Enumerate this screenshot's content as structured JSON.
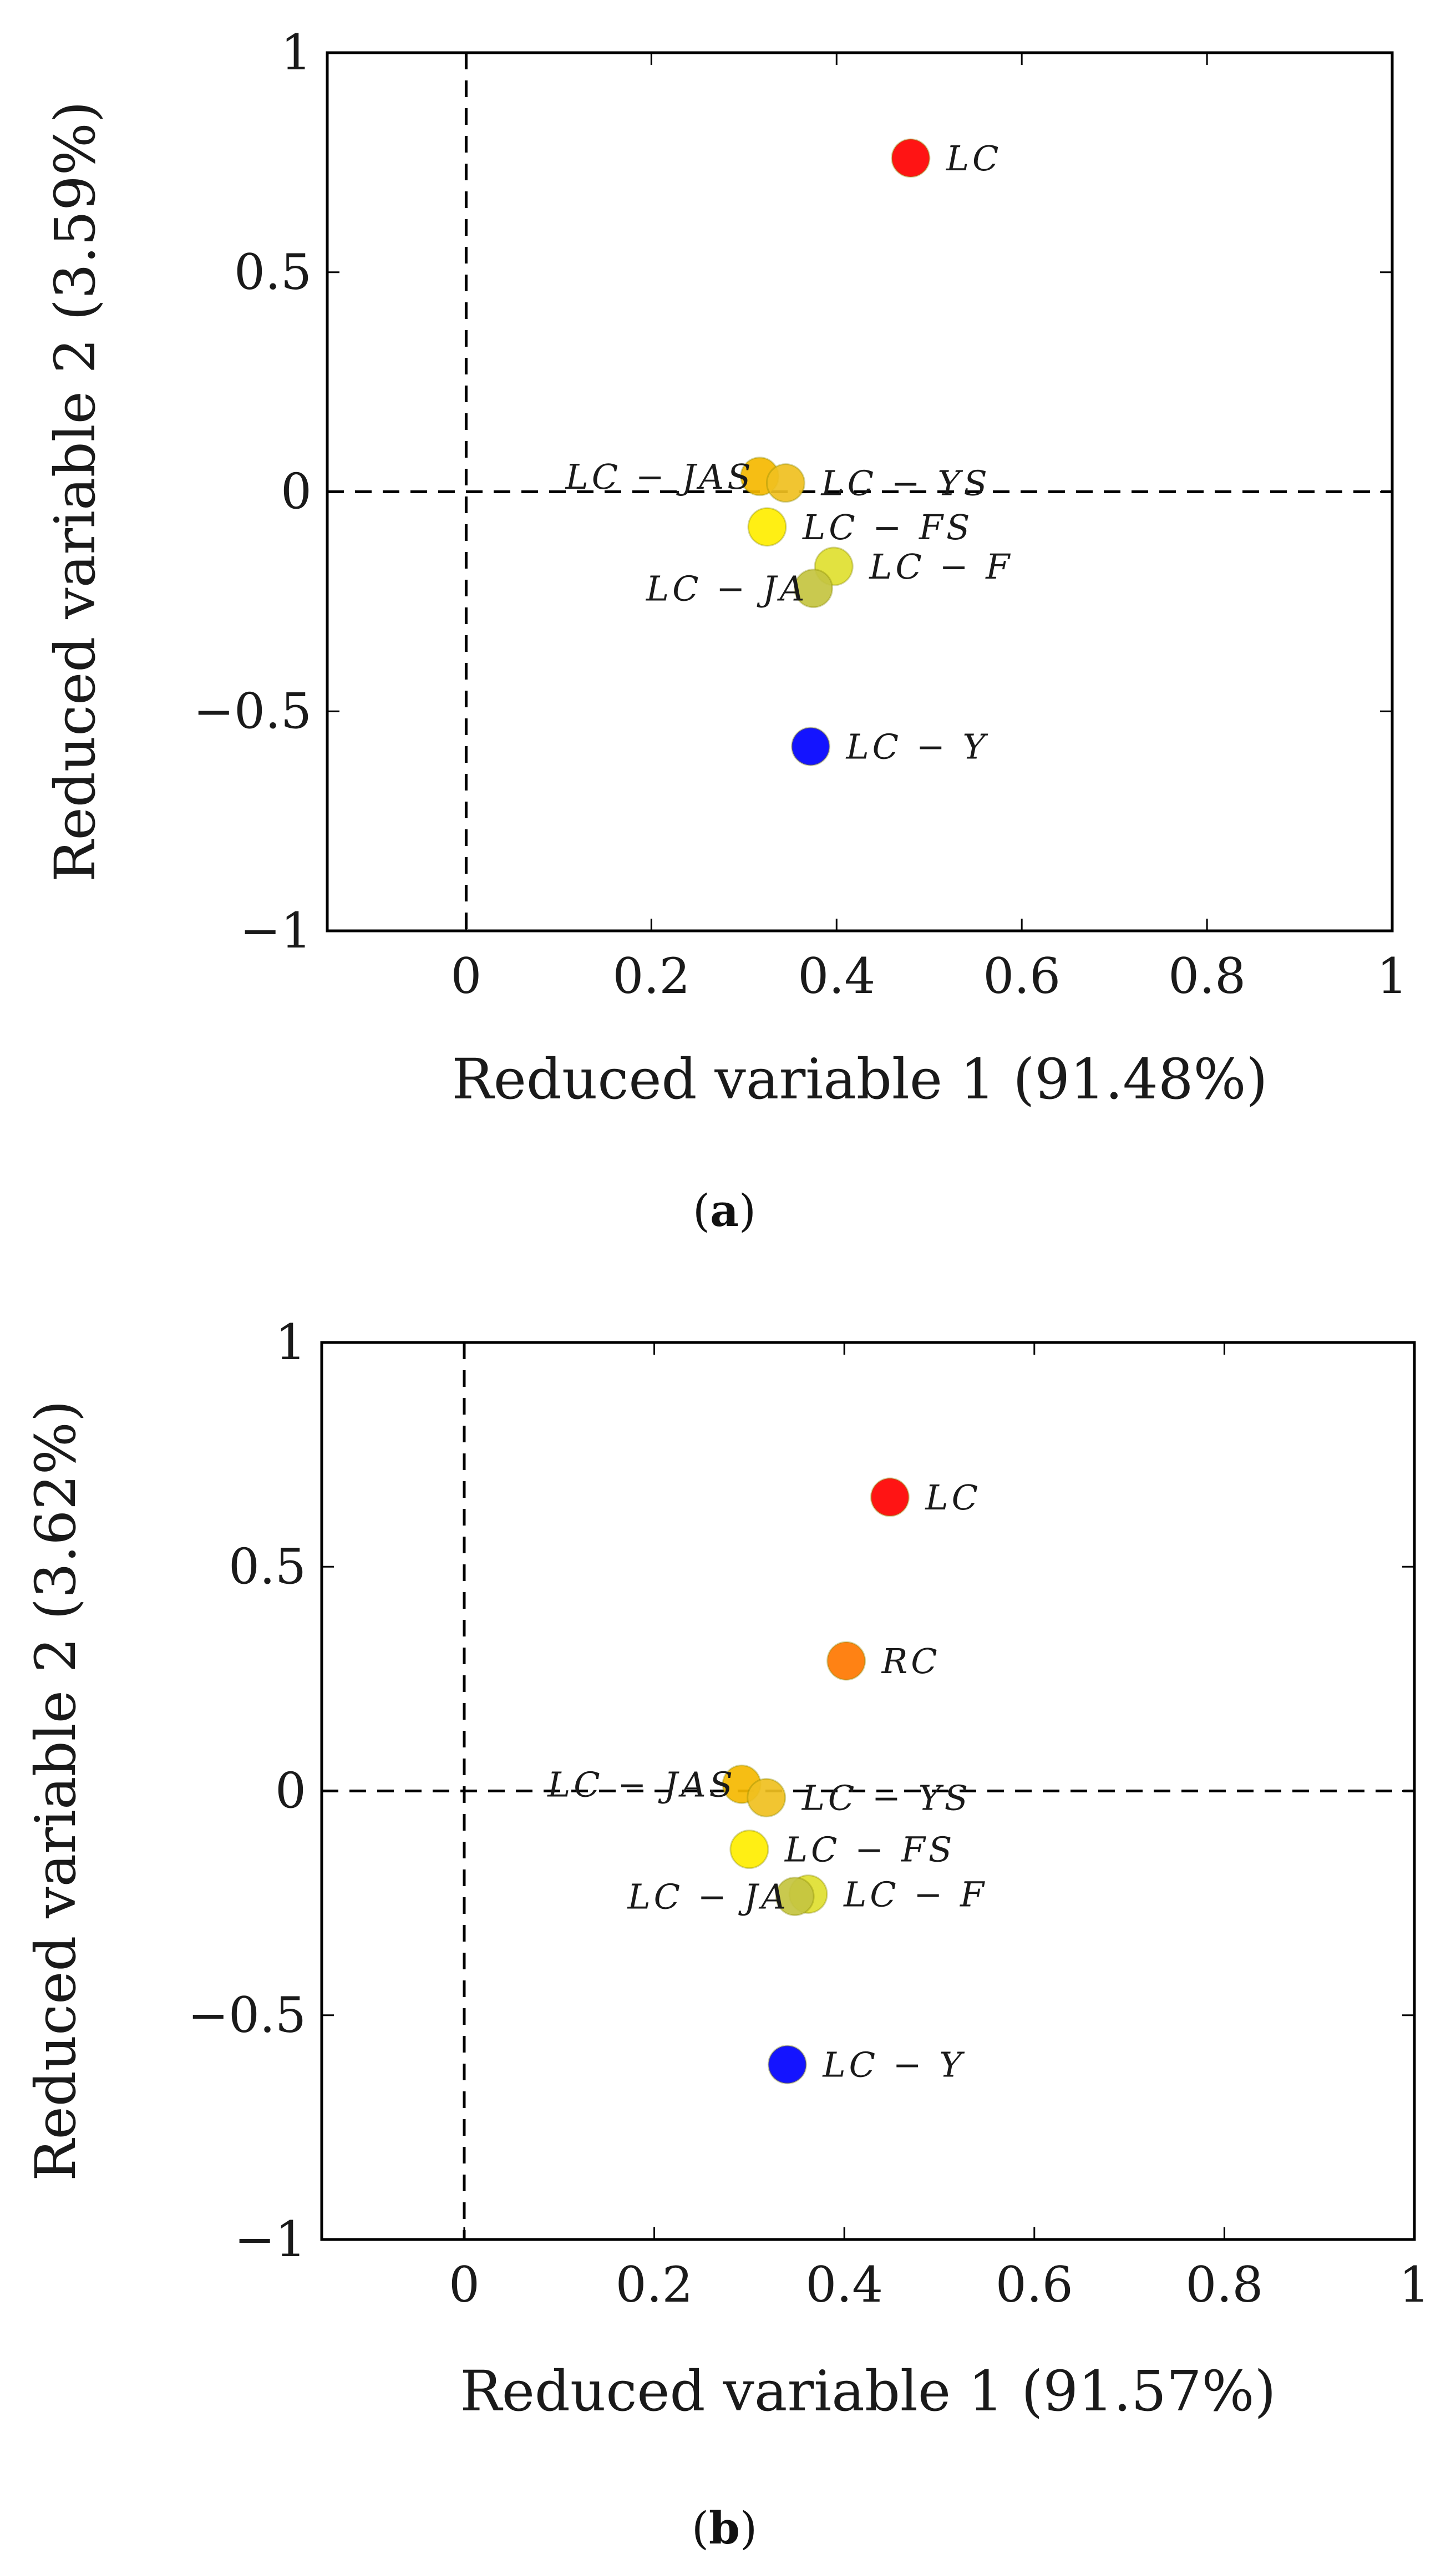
{
  "chart_data": [
    {
      "type": "scatter",
      "panel": "a",
      "caption": {
        "open": "(",
        "letter": "a",
        "close": ")"
      },
      "title": "",
      "xlabel": "Reduced variable 1 (91.48%)",
      "ylabel": "Reduced variable 2 (3.59%)",
      "xlim": [
        -0.15,
        1
      ],
      "ylim": [
        -1,
        1
      ],
      "xticks": [
        {
          "v": 0,
          "label": "0"
        },
        {
          "v": 0.2,
          "label": "0.2"
        },
        {
          "v": 0.4,
          "label": "0.4"
        },
        {
          "v": 0.6,
          "label": "0.6"
        },
        {
          "v": 0.8,
          "label": "0.8"
        },
        {
          "v": 1,
          "label": "1"
        }
      ],
      "yticks": [
        {
          "v": -1,
          "label": "−1"
        },
        {
          "v": -0.5,
          "label": "−0.5"
        },
        {
          "v": 0,
          "label": "0"
        },
        {
          "v": 0.5,
          "label": "0.5"
        },
        {
          "v": 1,
          "label": "1"
        }
      ],
      "reference_lines": {
        "x": 0,
        "y": 0,
        "style": "dashed"
      },
      "points": [
        {
          "label": "LC",
          "x": 0.48,
          "y": 0.76,
          "color": "#ff0000",
          "label_side": "right"
        },
        {
          "label": "LC − JAS",
          "x": 0.317,
          "y": 0.035,
          "color": "#f5b800",
          "label_side": "left"
        },
        {
          "label": "LC − YS",
          "x": 0.345,
          "y": 0.02,
          "color": "#f0c020",
          "label_side": "right"
        },
        {
          "label": "LC − FS",
          "x": 0.325,
          "y": -0.08,
          "color": "#ffee00",
          "label_side": "right"
        },
        {
          "label": "LC − F",
          "x": 0.397,
          "y": -0.17,
          "color": "#dfe030",
          "label_side": "right"
        },
        {
          "label": "LC − JA",
          "x": 0.375,
          "y": -0.22,
          "color": "#c4c440",
          "label_side": "left"
        },
        {
          "label": "LC − Y",
          "x": 0.372,
          "y": -0.58,
          "color": "#0000ff",
          "label_side": "right"
        }
      ]
    },
    {
      "type": "scatter",
      "panel": "b",
      "caption": {
        "open": "(",
        "letter": "b",
        "close": ")"
      },
      "title": "",
      "xlabel": "Reduced variable 1 (91.57%)",
      "ylabel": "Reduced variable 2 (3.62%)",
      "xlim": [
        -0.15,
        1
      ],
      "ylim": [
        -1,
        1
      ],
      "xticks": [
        {
          "v": 0,
          "label": "0"
        },
        {
          "v": 0.2,
          "label": "0.2"
        },
        {
          "v": 0.4,
          "label": "0.4"
        },
        {
          "v": 0.6,
          "label": "0.6"
        },
        {
          "v": 0.8,
          "label": "0.8"
        },
        {
          "v": 1,
          "label": "1"
        }
      ],
      "yticks": [
        {
          "v": -1,
          "label": "−1"
        },
        {
          "v": -0.5,
          "label": "−0.5"
        },
        {
          "v": 0,
          "label": "0"
        },
        {
          "v": 0.5,
          "label": "0.5"
        },
        {
          "v": 1,
          "label": "1"
        }
      ],
      "reference_lines": {
        "x": 0,
        "y": 0,
        "style": "dashed"
      },
      "points": [
        {
          "label": "LC",
          "x": 0.448,
          "y": 0.655,
          "color": "#ff0000",
          "label_side": "right"
        },
        {
          "label": "RC",
          "x": 0.402,
          "y": 0.29,
          "color": "#ff7700",
          "label_side": "right"
        },
        {
          "label": "LC − JAS",
          "x": 0.292,
          "y": 0.015,
          "color": "#f5b800",
          "label_side": "left"
        },
        {
          "label": "LC − YS",
          "x": 0.318,
          "y": -0.015,
          "color": "#f0c020",
          "label_side": "right"
        },
        {
          "label": "LC − FS",
          "x": 0.3,
          "y": -0.13,
          "color": "#ffee00",
          "label_side": "right"
        },
        {
          "label": "LC − F",
          "x": 0.362,
          "y": -0.23,
          "color": "#dfe030",
          "label_side": "right"
        },
        {
          "label": "LC − JA",
          "x": 0.348,
          "y": -0.235,
          "color": "#c4c440",
          "label_side": "left"
        },
        {
          "label": "LC − Y",
          "x": 0.34,
          "y": -0.61,
          "color": "#0000ff",
          "label_side": "right"
        }
      ]
    }
  ]
}
